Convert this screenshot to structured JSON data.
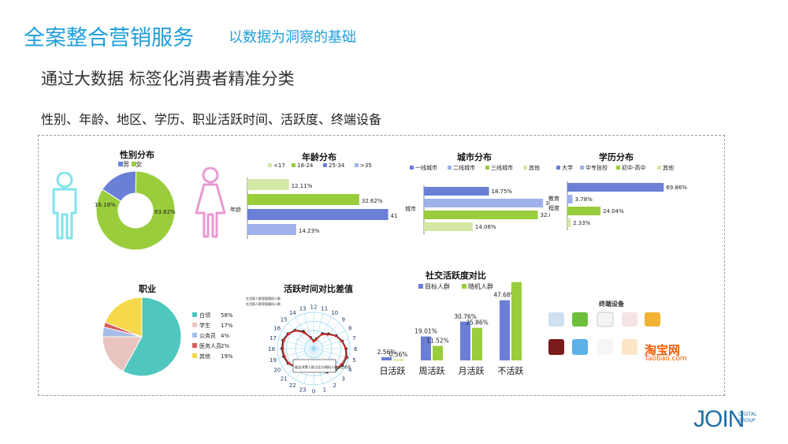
{
  "header": {
    "title": "全案整合营销服务",
    "subtitle": "以数据为洞察的基础",
    "heading": "通过大数据 标签化消费者精准分类",
    "dimensions": "性别、年龄、地区、学历、职业活跃时间、活跃度、终端设备"
  },
  "colors": {
    "accent": "#1e9fdc",
    "blue": "#6b7fd6",
    "light_blue": "#9fb2ec",
    "green": "#9acd3c",
    "light_green": "#d4e8a6",
    "teal": "#4fc7be",
    "pink": "#e89ad0",
    "cyan": "#7fe3ec"
  },
  "icons": {
    "male": "male-person-icon",
    "female": "female-person-icon"
  },
  "chart_data": [
    {
      "id": "gender",
      "type": "pie",
      "title": "性别分布",
      "legend": [
        "男",
        "女"
      ],
      "values": [
        16.18,
        83.82
      ],
      "labels": [
        "16.18%",
        "83.82%"
      ],
      "style": "donut"
    },
    {
      "id": "age",
      "type": "bar",
      "orientation": "horizontal",
      "title": "年龄分布",
      "legend": [
        "<17",
        "18-24",
        "25-34",
        ">35"
      ],
      "category_label": "年龄",
      "values": [
        12.11,
        32.62,
        41.04,
        14.23
      ],
      "labels": [
        "12.11%",
        "32.62%",
        "41.04%",
        "14.23%"
      ]
    },
    {
      "id": "city",
      "type": "bar",
      "orientation": "horizontal",
      "title": "城市分布",
      "legend": [
        "一线城市",
        "二线城市",
        "三线城市",
        "其他"
      ],
      "category_label": "城市",
      "values": [
        18.75,
        34.35,
        32.84,
        14.06
      ],
      "labels": [
        "18.75%",
        "34.35%",
        "32.84%",
        "14.06%"
      ]
    },
    {
      "id": "education",
      "type": "bar",
      "orientation": "horizontal",
      "title": "学历分布",
      "legend": [
        "大学",
        "中专技校",
        "初中-高中",
        "其他"
      ],
      "category_label": "教育程度",
      "values": [
        69.86,
        3.78,
        24.04,
        2.33
      ],
      "labels": [
        "69.86%",
        "3.78%",
        "24.04%",
        "2.33%"
      ]
    },
    {
      "id": "occupation",
      "type": "pie",
      "title": "职业",
      "categories": [
        "白领",
        "学生",
        "公务员",
        "医务人员",
        "其他"
      ],
      "values": [
        58,
        17,
        4,
        2,
        19
      ],
      "labels": [
        "58%",
        "17%",
        "4%",
        "2%",
        "19%"
      ]
    },
    {
      "id": "activity_time",
      "type": "radar",
      "title": "活跃时间对比差值",
      "legend": [
        "在活跃人群里面随机人群",
        "在活跃人群里面随机人群"
      ],
      "annotation": "据白消费人群占比与随机人群占比差值",
      "axes": [
        "0",
        "1",
        "2",
        "3",
        "4",
        "5",
        "6",
        "7",
        "8",
        "9",
        "10",
        "11",
        "12",
        "13",
        "14",
        "15",
        "16",
        "17",
        "18",
        "19",
        "20",
        "21",
        "22",
        "23"
      ],
      "series_a": [
        0.5,
        0.6,
        0.7,
        0.8,
        0.88,
        0.92,
        0.88,
        0.8,
        0.7,
        0.55,
        0.45,
        0.25,
        0.2,
        0.3,
        0.5,
        0.7,
        0.8,
        0.85,
        0.85,
        0.83,
        0.8,
        0.7,
        0.6,
        0.55
      ],
      "series_b": [
        0.6,
        0.65,
        0.75,
        0.85,
        0.92,
        0.95,
        0.9,
        0.82,
        0.72,
        0.58,
        0.48,
        0.28,
        0.22,
        0.32,
        0.55,
        0.72,
        0.82,
        0.88,
        0.88,
        0.86,
        0.82,
        0.72,
        0.62,
        0.58
      ]
    },
    {
      "id": "social",
      "type": "bar",
      "title": "社交活跃度对比",
      "categories": [
        "日活跃",
        "周活跃",
        "月活跃",
        "不活跃"
      ],
      "series": [
        {
          "name": "目标人群",
          "values": [
            2.56,
            19.01,
            30.76,
            47.68
          ],
          "labels": [
            "2.56%",
            "19.01%",
            "30.76%",
            "47.68%"
          ]
        },
        {
          "name": "随机人群",
          "values": [
            0.56,
            11.52,
            25.86,
            62.07
          ],
          "labels": [
            "0.56%",
            "11.52%",
            "25.86%",
            "62.07%"
          ]
        }
      ]
    }
  ],
  "devices": {
    "title": "终端设备",
    "brands": [
      "淘宝网",
      "Taobao.com"
    ]
  },
  "brand": {
    "name": "JOIN",
    "tag1": "DIGITAL",
    "tag2": "GROUP"
  }
}
